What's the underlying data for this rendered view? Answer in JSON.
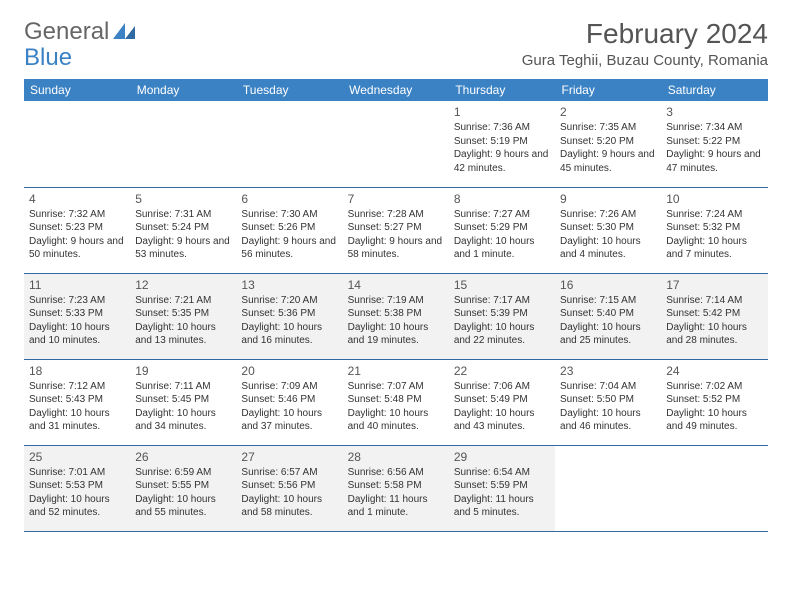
{
  "logo": {
    "part1": "General",
    "part2": "Blue"
  },
  "title": "February 2024",
  "location": "Gura Teghii, Buzau County, Romania",
  "colors": {
    "header_bg": "#3b82c4",
    "header_text": "#ffffff",
    "row_alt_bg": "#f2f2f2",
    "row_bg": "#ffffff",
    "border": "#2f6aa3",
    "text": "#333333"
  },
  "day_headers": [
    "Sunday",
    "Monday",
    "Tuesday",
    "Wednesday",
    "Thursday",
    "Friday",
    "Saturday"
  ],
  "weeks": [
    [
      null,
      null,
      null,
      null,
      {
        "n": "1",
        "sr": "Sunrise: 7:36 AM",
        "ss": "Sunset: 5:19 PM",
        "dl": "Daylight: 9 hours and 42 minutes."
      },
      {
        "n": "2",
        "sr": "Sunrise: 7:35 AM",
        "ss": "Sunset: 5:20 PM",
        "dl": "Daylight: 9 hours and 45 minutes."
      },
      {
        "n": "3",
        "sr": "Sunrise: 7:34 AM",
        "ss": "Sunset: 5:22 PM",
        "dl": "Daylight: 9 hours and 47 minutes."
      }
    ],
    [
      {
        "n": "4",
        "sr": "Sunrise: 7:32 AM",
        "ss": "Sunset: 5:23 PM",
        "dl": "Daylight: 9 hours and 50 minutes."
      },
      {
        "n": "5",
        "sr": "Sunrise: 7:31 AM",
        "ss": "Sunset: 5:24 PM",
        "dl": "Daylight: 9 hours and 53 minutes."
      },
      {
        "n": "6",
        "sr": "Sunrise: 7:30 AM",
        "ss": "Sunset: 5:26 PM",
        "dl": "Daylight: 9 hours and 56 minutes."
      },
      {
        "n": "7",
        "sr": "Sunrise: 7:28 AM",
        "ss": "Sunset: 5:27 PM",
        "dl": "Daylight: 9 hours and 58 minutes."
      },
      {
        "n": "8",
        "sr": "Sunrise: 7:27 AM",
        "ss": "Sunset: 5:29 PM",
        "dl": "Daylight: 10 hours and 1 minute."
      },
      {
        "n": "9",
        "sr": "Sunrise: 7:26 AM",
        "ss": "Sunset: 5:30 PM",
        "dl": "Daylight: 10 hours and 4 minutes."
      },
      {
        "n": "10",
        "sr": "Sunrise: 7:24 AM",
        "ss": "Sunset: 5:32 PM",
        "dl": "Daylight: 10 hours and 7 minutes."
      }
    ],
    [
      {
        "n": "11",
        "sr": "Sunrise: 7:23 AM",
        "ss": "Sunset: 5:33 PM",
        "dl": "Daylight: 10 hours and 10 minutes."
      },
      {
        "n": "12",
        "sr": "Sunrise: 7:21 AM",
        "ss": "Sunset: 5:35 PM",
        "dl": "Daylight: 10 hours and 13 minutes."
      },
      {
        "n": "13",
        "sr": "Sunrise: 7:20 AM",
        "ss": "Sunset: 5:36 PM",
        "dl": "Daylight: 10 hours and 16 minutes."
      },
      {
        "n": "14",
        "sr": "Sunrise: 7:19 AM",
        "ss": "Sunset: 5:38 PM",
        "dl": "Daylight: 10 hours and 19 minutes."
      },
      {
        "n": "15",
        "sr": "Sunrise: 7:17 AM",
        "ss": "Sunset: 5:39 PM",
        "dl": "Daylight: 10 hours and 22 minutes."
      },
      {
        "n": "16",
        "sr": "Sunrise: 7:15 AM",
        "ss": "Sunset: 5:40 PM",
        "dl": "Daylight: 10 hours and 25 minutes."
      },
      {
        "n": "17",
        "sr": "Sunrise: 7:14 AM",
        "ss": "Sunset: 5:42 PM",
        "dl": "Daylight: 10 hours and 28 minutes."
      }
    ],
    [
      {
        "n": "18",
        "sr": "Sunrise: 7:12 AM",
        "ss": "Sunset: 5:43 PM",
        "dl": "Daylight: 10 hours and 31 minutes."
      },
      {
        "n": "19",
        "sr": "Sunrise: 7:11 AM",
        "ss": "Sunset: 5:45 PM",
        "dl": "Daylight: 10 hours and 34 minutes."
      },
      {
        "n": "20",
        "sr": "Sunrise: 7:09 AM",
        "ss": "Sunset: 5:46 PM",
        "dl": "Daylight: 10 hours and 37 minutes."
      },
      {
        "n": "21",
        "sr": "Sunrise: 7:07 AM",
        "ss": "Sunset: 5:48 PM",
        "dl": "Daylight: 10 hours and 40 minutes."
      },
      {
        "n": "22",
        "sr": "Sunrise: 7:06 AM",
        "ss": "Sunset: 5:49 PM",
        "dl": "Daylight: 10 hours and 43 minutes."
      },
      {
        "n": "23",
        "sr": "Sunrise: 7:04 AM",
        "ss": "Sunset: 5:50 PM",
        "dl": "Daylight: 10 hours and 46 minutes."
      },
      {
        "n": "24",
        "sr": "Sunrise: 7:02 AM",
        "ss": "Sunset: 5:52 PM",
        "dl": "Daylight: 10 hours and 49 minutes."
      }
    ],
    [
      {
        "n": "25",
        "sr": "Sunrise: 7:01 AM",
        "ss": "Sunset: 5:53 PM",
        "dl": "Daylight: 10 hours and 52 minutes."
      },
      {
        "n": "26",
        "sr": "Sunrise: 6:59 AM",
        "ss": "Sunset: 5:55 PM",
        "dl": "Daylight: 10 hours and 55 minutes."
      },
      {
        "n": "27",
        "sr": "Sunrise: 6:57 AM",
        "ss": "Sunset: 5:56 PM",
        "dl": "Daylight: 10 hours and 58 minutes."
      },
      {
        "n": "28",
        "sr": "Sunrise: 6:56 AM",
        "ss": "Sunset: 5:58 PM",
        "dl": "Daylight: 11 hours and 1 minute."
      },
      {
        "n": "29",
        "sr": "Sunrise: 6:54 AM",
        "ss": "Sunset: 5:59 PM",
        "dl": "Daylight: 11 hours and 5 minutes."
      },
      null,
      null
    ]
  ]
}
